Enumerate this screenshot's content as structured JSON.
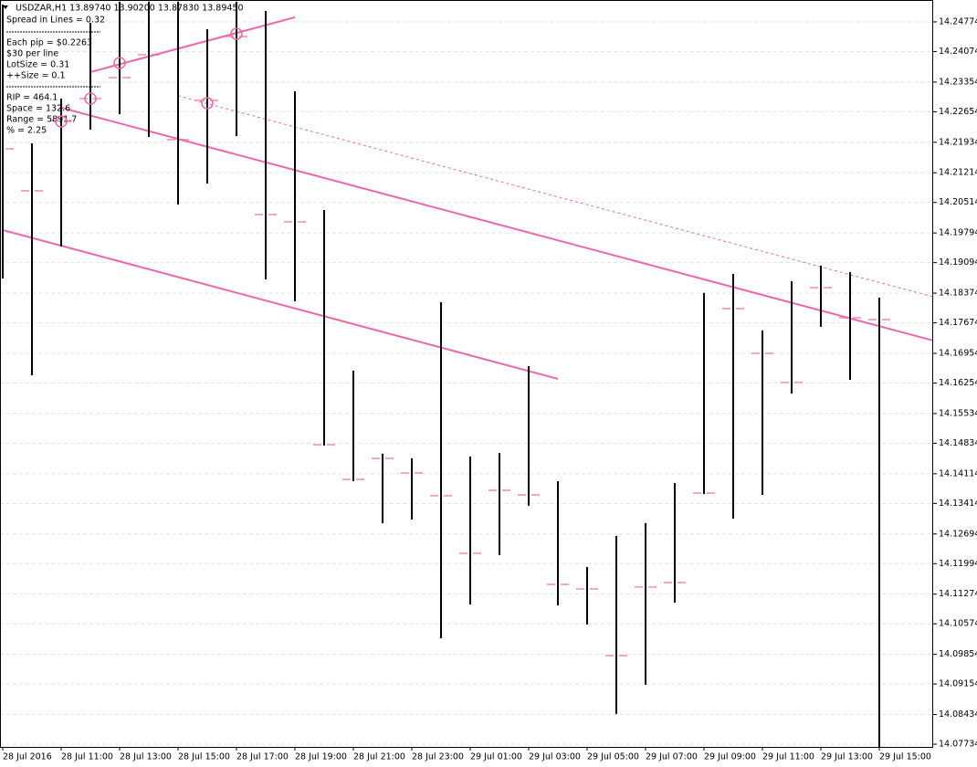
{
  "chart_data": {
    "type": "hlbar",
    "symbol_line": "USDZAR,H1  13.89740 13.90200 13.87830 13.89450",
    "info": [
      "Spread in Lines = 0.32",
      "Each pip = $0.2263",
      "$30 per line",
      "LotSize = 0.31",
      "++Size = 0.1",
      "RIP = 464.1",
      "Space = 132.6",
      "Range = 5891.7",
      "% = 2.25"
    ],
    "categories": [
      "28 Jul 2016",
      null,
      "28 Jul 11:00",
      null,
      "28 Jul 13:00",
      null,
      "28 Jul 15:00",
      null,
      "28 Jul 17:00",
      null,
      "28 Jul 19:00",
      null,
      "28 Jul 21:00",
      null,
      "28 Jul 23:00",
      null,
      "29 Jul 01:00",
      null,
      "29 Jul 03:00",
      null,
      "29 Jul 05:00",
      null,
      "29 Jul 07:00",
      null,
      "29 Jul 09:00",
      null,
      "29 Jul 11:00",
      null,
      "29 Jul 13:00",
      null,
      "29 Jul 15:00"
    ],
    "high": [
      14.25183,
      14.21909,
      14.22965,
      14.24752,
      14.2525,
      14.2525,
      14.2525,
      14.24602,
      14.2525,
      14.25032,
      14.23137,
      14.20337,
      14.16546,
      14.14586,
      14.14478,
      14.18161,
      14.14521,
      14.14607,
      14.16653,
      14.13939,
      14.11914,
      14.12647,
      14.12949,
      14.13896,
      14.18377,
      14.18829,
      14.17494,
      14.18657,
      14.19023,
      14.18872,
      14.18269
    ],
    "low": [
      14.18721,
      14.16438,
      14.19475,
      14.22232,
      14.22598,
      14.2206,
      14.20466,
      14.20961,
      14.22081,
      14.187,
      14.18183,
      14.14779,
      14.13939,
      14.12949,
      14.13035,
      14.10234,
      14.11031,
      14.12195,
      14.13358,
      14.1101,
      14.10558,
      14.08447,
      14.09136,
      14.11074,
      14.13638,
      14.13056,
      14.13616,
      14.16007,
      14.1758,
      14.1633,
      14.07671
    ],
    "level": [
      14.2178,
      14.20789,
      14.22448,
      14.22965,
      14.2346,
      14.23999,
      14.21995,
      14.22922,
      14.24429,
      14.20229,
      14.20057,
      14.14801,
      14.13982,
      14.14478,
      14.14133,
      14.13595,
      14.12238,
      14.13724,
      14.13616,
      14.11505,
      14.11398,
      14.09825,
      14.11441,
      14.11548,
      14.13659,
      14.1801,
      14.16955,
      14.16266,
      14.18506,
      14.17795,
      14.17752
    ],
    "bar_color": "#000000",
    "level_color": "#f4a6c4",
    "line_color": "#ee66aa",
    "trend_lines": [
      {
        "x": [
          2,
          31.84
        ],
        "y": [
          14.22749,
          14.17257
        ],
        "style": "solid"
      },
      {
        "x": [
          0,
          19
        ],
        "y": [
          14.19863,
          14.16352
        ],
        "style": "solid"
      },
      {
        "x": [
          3,
          10
        ],
        "y": [
          14.23589,
          14.24882
        ],
        "style": "solid"
      },
      {
        "x": [
          6,
          31.84
        ],
        "y": [
          14.23029,
          14.1829
        ],
        "style": "dotted"
      }
    ],
    "ylim": [
      14.0767,
      14.2529
    ],
    "yticks": [
      14.24774,
      14.24074,
      14.23354,
      14.22654,
      14.21934,
      14.21214,
      14.20514,
      14.19794,
      14.19094,
      14.18374,
      14.17674,
      14.16954,
      14.16254,
      14.15534,
      14.14834,
      14.14114,
      14.13414,
      14.12694,
      14.11994,
      14.11274,
      14.10574,
      14.09854,
      14.09154,
      14.08434,
      14.07734
    ],
    "grid": true
  }
}
